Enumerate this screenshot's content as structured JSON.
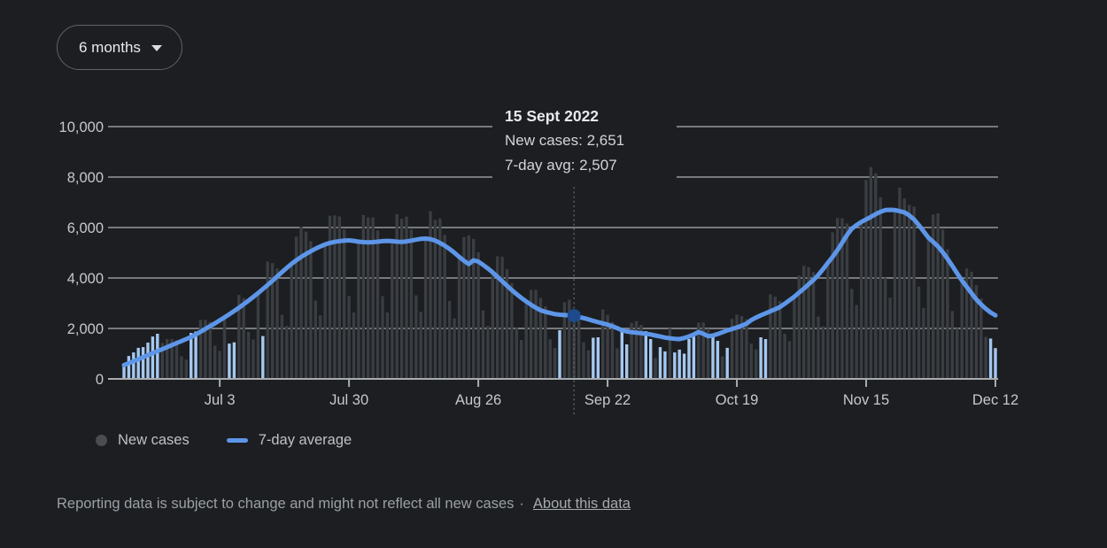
{
  "page": {
    "background": "#1c1e21"
  },
  "controls": {
    "range_selector": {
      "label": "6 months",
      "icon": "chevron-down"
    }
  },
  "tooltip": {
    "date": "15 Sept 2022",
    "new_cases_line": "New cases: 2,651",
    "avg_line": "7-day avg: 2,507"
  },
  "legend": {
    "items": [
      {
        "label": "New cases",
        "swatch": "gray-dot",
        "color": "#494d52"
      },
      {
        "label": "7-day average",
        "swatch": "blue-line",
        "color": "#5d96e8"
      }
    ]
  },
  "footer": {
    "disclaimer": "Reporting data is subject to change and might not reflect all new cases",
    "separator": "·",
    "link_label": "About this data"
  },
  "chart_data": {
    "type": "bar",
    "title": "New COVID-19 cases with 7-day average, 6 month range",
    "ylim": [
      0,
      10000
    ],
    "grid": true,
    "legend_position": "bottom",
    "yticks": [
      {
        "value": 0,
        "label": "0"
      },
      {
        "value": 2000,
        "label": "2,000"
      },
      {
        "value": 4000,
        "label": "4,000"
      },
      {
        "value": 6000,
        "label": "6,000"
      },
      {
        "value": 8000,
        "label": "8,000"
      },
      {
        "value": 10000,
        "label": "10,000"
      }
    ],
    "xticks": [
      {
        "index": 20,
        "label": "Jul 3"
      },
      {
        "index": 47,
        "label": "Jul 30"
      },
      {
        "index": 74,
        "label": "Aug 26"
      },
      {
        "index": 101,
        "label": "Sep 22"
      },
      {
        "index": 128,
        "label": "Oct 19"
      },
      {
        "index": 155,
        "label": "Nov 15"
      },
      {
        "index": 182,
        "label": "Dec 12"
      }
    ],
    "series": [
      {
        "name": "New cases",
        "type": "bar",
        "values": [
          560,
          910,
          1050,
          1230,
          1260,
          1440,
          1680,
          1790,
          1420,
          1580,
          1580,
          1530,
          900,
          760,
          1820,
          1880,
          2340,
          2340,
          2260,
          1320,
          1110,
          2440,
          1400,
          1450,
          3330,
          3200,
          1860,
          1560,
          3400,
          1700,
          4650,
          4590,
          4380,
          2540,
          2110,
          4560,
          5640,
          6040,
          5840,
          5460,
          3100,
          2520,
          5330,
          6470,
          6480,
          6440,
          5920,
          3290,
          2630,
          5440,
          6500,
          6400,
          6400,
          5880,
          3280,
          2630,
          5460,
          6530,
          6350,
          6430,
          5920,
          3310,
          2660,
          5560,
          6650,
          6300,
          6360,
          5700,
          3090,
          2400,
          4840,
          5620,
          5690,
          5550,
          5020,
          2710,
          2100,
          4220,
          4860,
          4840,
          4350,
          3800,
          2020,
          1540,
          3070,
          3530,
          3530,
          3210,
          2870,
          1570,
          1230,
          1930,
          3040,
          3140,
          2651,
          2660,
          1450,
          1130,
          1630,
          1650,
          2750,
          2540,
          2260,
          1210,
          1930,
          1370,
          2220,
          2290,
          2140,
          1890,
          1580,
          830,
          1260,
          1090,
          2010,
          1050,
          1160,
          1000,
          1580,
          1680,
          2230,
          2240,
          1990,
          1650,
          1510,
          890,
          1230,
          2380,
          2550,
          2490,
          2370,
          1400,
          1170,
          1650,
          1580,
          3350,
          3260,
          3080,
          1790,
          1500,
          3260,
          4100,
          4480,
          4430,
          4230,
          2470,
          2090,
          4600,
          5810,
          6380,
          6370,
          6160,
          3570,
          2930,
          6220,
          7880,
          8400,
          8150,
          7200,
          4010,
          3220,
          6690,
          7580,
          7150,
          6900,
          6830,
          3660,
          2810,
          5600,
          6520,
          6560,
          5920,
          5140,
          2690,
          2010,
          3900,
          4380,
          4250,
          3720,
          3190,
          1670,
          1600,
          1220
        ]
      },
      {
        "name": "7-day average",
        "type": "line",
        "values": [
          550,
          620,
          700,
          780,
          860,
          940,
          1020,
          1100,
          1180,
          1260,
          1340,
          1420,
          1500,
          1580,
          1660,
          1760,
          1870,
          1980,
          2090,
          2200,
          2320,
          2440,
          2560,
          2690,
          2820,
          2960,
          3100,
          3250,
          3400,
          3560,
          3720,
          3890,
          4060,
          4230,
          4400,
          4560,
          4700,
          4830,
          4950,
          5060,
          5160,
          5250,
          5330,
          5390,
          5430,
          5460,
          5480,
          5490,
          5470,
          5440,
          5420,
          5410,
          5420,
          5440,
          5460,
          5470,
          5460,
          5440,
          5430,
          5450,
          5480,
          5520,
          5550,
          5560,
          5540,
          5480,
          5390,
          5280,
          5150,
          5000,
          4840,
          4680,
          4550,
          4700,
          4650,
          4520,
          4380,
          4220,
          4050,
          3870,
          3690,
          3520,
          3360,
          3210,
          3070,
          2940,
          2820,
          2720,
          2660,
          2610,
          2570,
          2545,
          2530,
          2515,
          2507,
          2460,
          2410,
          2360,
          2300,
          2250,
          2200,
          2150,
          2090,
          2010,
          1930,
          1880,
          1850,
          1830,
          1810,
          1790,
          1760,
          1720,
          1680,
          1640,
          1610,
          1590,
          1580,
          1620,
          1680,
          1760,
          1860,
          1790,
          1690,
          1720,
          1780,
          1850,
          1920,
          1980,
          2040,
          2110,
          2190,
          2330,
          2430,
          2520,
          2600,
          2680,
          2760,
          2850,
          2980,
          3120,
          3260,
          3420,
          3580,
          3750,
          3920,
          4120,
          4350,
          4600,
          4840,
          5100,
          5400,
          5700,
          5950,
          6100,
          6220,
          6320,
          6420,
          6530,
          6620,
          6690,
          6700,
          6690,
          6650,
          6600,
          6480,
          6320,
          6100,
          5850,
          5600,
          5430,
          5250,
          5020,
          4760,
          4480,
          4190,
          3900,
          3650,
          3400,
          3150,
          2950,
          2780,
          2630,
          2520
        ]
      }
    ],
    "highlighted_bar_indexes": [
      0,
      1,
      2,
      3,
      4,
      5,
      6,
      7,
      14,
      15,
      22,
      23,
      29,
      91,
      98,
      99,
      104,
      105,
      109,
      110,
      112,
      113,
      115,
      116,
      117,
      118,
      119,
      123,
      124,
      126,
      133,
      134,
      181,
      182
    ],
    "selected_point": {
      "index": 94,
      "date": "15 Sept 2022",
      "new_cases": 2651,
      "seven_day_avg": 2507
    },
    "colors": {
      "bar": "#3a3e42",
      "bar_highlight": "#a5c8f0",
      "line": "#5d96e8",
      "selected_dot": "#1d4a8c",
      "gridline": "#77797c",
      "baseline": "#a9acaf",
      "axis_text": "#c6c9cc",
      "connector": "#5e6266"
    }
  }
}
